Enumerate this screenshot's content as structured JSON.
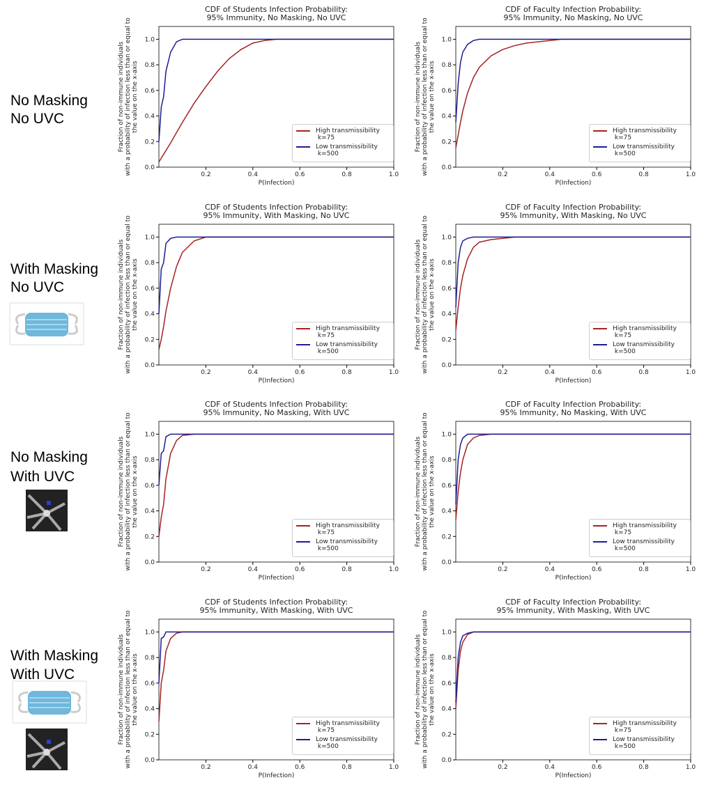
{
  "row_labels": [
    [
      "No Masking",
      "No UVC"
    ],
    [
      "With Masking",
      "No UVC"
    ],
    [
      "No Masking",
      "With UVC"
    ],
    [
      "With Masking",
      "With UVC"
    ]
  ],
  "chart_data": [
    {
      "type": "line",
      "title": [
        "CDF of Students Infection Probability:",
        "95% Immunity, No Masking, No UVC"
      ],
      "xlabel": "P(Infection)",
      "ylabel": [
        "Fraction of non-immune individuals",
        "with a probability of infection less than or equal to",
        "the value on the x-axis"
      ],
      "x": [
        0,
        0.01,
        0.02,
        0.03,
        0.05,
        0.075,
        0.1,
        0.15,
        0.2,
        0.25,
        0.3,
        0.35,
        0.4,
        0.45,
        0.5,
        0.6,
        0.8,
        1.0
      ],
      "series": [
        {
          "name": "High transmissibility\n k=75",
          "color": "#a52121",
          "values": [
            0.04,
            0.07,
            0.1,
            0.13,
            0.19,
            0.27,
            0.35,
            0.5,
            0.63,
            0.75,
            0.85,
            0.92,
            0.97,
            0.99,
            1,
            1,
            1,
            1
          ]
        },
        {
          "name": "Low transmissibility\n k=500",
          "color": "#1c1c96",
          "values": [
            0.2,
            0.47,
            0.55,
            0.75,
            0.9,
            0.98,
            1,
            1,
            1,
            1,
            1,
            1,
            1,
            1,
            1,
            1,
            1,
            1
          ]
        }
      ],
      "xlim": [
        0,
        1
      ],
      "ylim": [
        0,
        1.1
      ],
      "xticks": [
        0.2,
        0.4,
        0.6,
        0.8,
        {
          "value": 1,
          "label": "1.0"
        }
      ],
      "yticks": [
        {
          "value": 0,
          "label": "0.0"
        },
        0.2,
        0.4,
        0.6,
        0.8,
        {
          "value": 1,
          "label": "1.0"
        }
      ],
      "legend": "lower right"
    },
    {
      "type": "line",
      "title": [
        "CDF of Faculty Infection Probability:",
        "95% Immunity, No Masking, No UVC"
      ],
      "xlabel": "P(Infection)",
      "ylabel": [
        "Fraction of non-immune individuals",
        "with a probability of infection less than or equal to",
        "the value on the x-axis"
      ],
      "x": [
        0,
        0.01,
        0.02,
        0.03,
        0.05,
        0.075,
        0.1,
        0.15,
        0.2,
        0.25,
        0.3,
        0.35,
        0.4,
        0.45,
        0.5,
        0.6,
        0.8,
        1.0
      ],
      "series": [
        {
          "name": "High transmissibility\n k=75",
          "color": "#a52121",
          "values": [
            0.15,
            0.25,
            0.35,
            0.44,
            0.58,
            0.7,
            0.78,
            0.87,
            0.92,
            0.95,
            0.97,
            0.98,
            0.99,
            1,
            1,
            1,
            1,
            1
          ]
        },
        {
          "name": "Low transmissibility\n k=500",
          "color": "#1c1c96",
          "values": [
            0.35,
            0.65,
            0.82,
            0.9,
            0.96,
            0.99,
            1,
            1,
            1,
            1,
            1,
            1,
            1,
            1,
            1,
            1,
            1,
            1
          ]
        }
      ],
      "xlim": [
        0,
        1
      ],
      "ylim": [
        0,
        1.1
      ],
      "xticks": [
        0.2,
        0.4,
        0.6,
        0.8,
        {
          "value": 1,
          "label": "1.0"
        }
      ],
      "yticks": [
        {
          "value": 0,
          "label": "0.0"
        },
        0.2,
        0.4,
        0.6,
        0.8,
        {
          "value": 1,
          "label": "1.0"
        }
      ],
      "legend": "lower right"
    },
    {
      "type": "line",
      "title": [
        "CDF of Students Infection Probability:",
        "95% Immunity, With Masking, No UVC"
      ],
      "xlabel": "P(Infection)",
      "ylabel": [
        "Fraction of non-immune individuals",
        "with a probability of infection less than or equal to",
        "the value on the x-axis"
      ],
      "x": [
        0,
        0.01,
        0.02,
        0.03,
        0.05,
        0.075,
        0.1,
        0.15,
        0.2,
        0.25,
        0.3,
        0.35,
        0.4,
        0.45,
        0.5,
        0.6,
        0.8,
        1.0
      ],
      "series": [
        {
          "name": "High transmissibility\n k=75",
          "color": "#a52121",
          "values": [
            0.12,
            0.2,
            0.3,
            0.42,
            0.6,
            0.77,
            0.88,
            0.97,
            1,
            1,
            1,
            1,
            1,
            1,
            1,
            1,
            1,
            1
          ]
        },
        {
          "name": "Low transmissibility\n k=500",
          "color": "#1c1c96",
          "values": [
            0.4,
            0.75,
            0.8,
            0.95,
            0.99,
            1,
            1,
            1,
            1,
            1,
            1,
            1,
            1,
            1,
            1,
            1,
            1,
            1
          ]
        }
      ],
      "xlim": [
        0,
        1
      ],
      "ylim": [
        0,
        1.1
      ],
      "xticks": [
        0.2,
        0.4,
        0.6,
        0.8,
        {
          "value": 1,
          "label": "1.0"
        }
      ],
      "yticks": [
        {
          "value": 0,
          "label": "0.0"
        },
        0.2,
        0.4,
        0.6,
        0.8,
        {
          "value": 1,
          "label": "1.0"
        }
      ],
      "legend": "lower right"
    },
    {
      "type": "line",
      "title": [
        "CDF of Faculty Infection Probability:",
        "95% Immunity, With Masking, No UVC"
      ],
      "xlabel": "P(Infection)",
      "ylabel": [
        "Fraction of non-immune individuals",
        "with a probability of infection less than or equal to",
        "the value on the x-axis"
      ],
      "x": [
        0,
        0.01,
        0.02,
        0.03,
        0.05,
        0.075,
        0.1,
        0.15,
        0.2,
        0.25,
        0.3,
        0.35,
        0.4,
        0.45,
        0.5,
        0.6,
        0.8,
        1.0
      ],
      "series": [
        {
          "name": "High transmissibility\n k=75",
          "color": "#a52121",
          "values": [
            0.27,
            0.45,
            0.6,
            0.7,
            0.83,
            0.92,
            0.96,
            0.98,
            0.99,
            1,
            1,
            1,
            1,
            1,
            1,
            1,
            1,
            1
          ]
        },
        {
          "name": "Low transmissibility\n k=500",
          "color": "#1c1c96",
          "values": [
            0.45,
            0.8,
            0.92,
            0.97,
            0.99,
            1,
            1,
            1,
            1,
            1,
            1,
            1,
            1,
            1,
            1,
            1,
            1,
            1
          ]
        }
      ],
      "xlim": [
        0,
        1
      ],
      "ylim": [
        0,
        1.1
      ],
      "xticks": [
        0.2,
        0.4,
        0.6,
        0.8,
        {
          "value": 1,
          "label": "1.0"
        }
      ],
      "yticks": [
        {
          "value": 0,
          "label": "0.0"
        },
        0.2,
        0.4,
        0.6,
        0.8,
        {
          "value": 1,
          "label": "1.0"
        }
      ],
      "legend": "lower right"
    },
    {
      "type": "line",
      "title": [
        "CDF of Students Infection Probability:",
        "95% Immunity, No Masking, With UVC"
      ],
      "xlabel": "P(Infection)",
      "ylabel": [
        "Fraction of non-immune individuals",
        "with a probability of infection less than or equal to",
        "the value on the x-axis"
      ],
      "x": [
        0,
        0.01,
        0.02,
        0.03,
        0.05,
        0.075,
        0.1,
        0.15,
        0.2,
        0.25,
        0.3,
        0.35,
        0.4,
        0.45,
        0.5,
        0.6,
        0.8,
        1.0
      ],
      "series": [
        {
          "name": "High transmissibility\n k=75",
          "color": "#a52121",
          "values": [
            0.2,
            0.35,
            0.45,
            0.65,
            0.85,
            0.95,
            0.99,
            1,
            1,
            1,
            1,
            1,
            1,
            1,
            1,
            1,
            1,
            1
          ]
        },
        {
          "name": "Low transmissibility\n k=500",
          "color": "#1c1c96",
          "values": [
            0.6,
            0.85,
            0.87,
            0.98,
            1,
            1,
            1,
            1,
            1,
            1,
            1,
            1,
            1,
            1,
            1,
            1,
            1,
            1
          ]
        }
      ],
      "xlim": [
        0,
        1
      ],
      "ylim": [
        0,
        1.1
      ],
      "xticks": [
        0.2,
        0.4,
        0.6,
        0.8,
        {
          "value": 1,
          "label": "1.0"
        }
      ],
      "yticks": [
        {
          "value": 0,
          "label": "0.0"
        },
        0.2,
        0.4,
        0.6,
        0.8,
        {
          "value": 1,
          "label": "1.0"
        }
      ],
      "legend": "lower right"
    },
    {
      "type": "line",
      "title": [
        "CDF of Faculty Infection Probability:",
        "95% Immunity, No Masking, With UVC"
      ],
      "xlabel": "P(Infection)",
      "ylabel": [
        "Fraction of non-immune individuals",
        "with a probability of infection less than or equal to",
        "the value on the x-axis"
      ],
      "x": [
        0,
        0.01,
        0.02,
        0.03,
        0.05,
        0.075,
        0.1,
        0.15,
        0.2,
        0.25,
        0.3,
        0.35,
        0.4,
        0.45,
        0.5,
        0.6,
        0.8,
        1.0
      ],
      "series": [
        {
          "name": "High transmissibility\n k=75",
          "color": "#a52121",
          "values": [
            0.33,
            0.55,
            0.7,
            0.8,
            0.92,
            0.97,
            0.99,
            1,
            1,
            1,
            1,
            1,
            1,
            1,
            1,
            1,
            1,
            1
          ]
        },
        {
          "name": "Low transmissibility\n k=500",
          "color": "#1c1c96",
          "values": [
            0.45,
            0.8,
            0.92,
            0.97,
            1,
            1,
            1,
            1,
            1,
            1,
            1,
            1,
            1,
            1,
            1,
            1,
            1,
            1
          ]
        }
      ],
      "xlim": [
        0,
        1
      ],
      "ylim": [
        0,
        1.1
      ],
      "xticks": [
        0.2,
        0.4,
        0.6,
        0.8,
        {
          "value": 1,
          "label": "1.0"
        }
      ],
      "yticks": [
        {
          "value": 0,
          "label": "0.0"
        },
        0.2,
        0.4,
        0.6,
        0.8,
        {
          "value": 1,
          "label": "1.0"
        }
      ],
      "legend": "lower right"
    },
    {
      "type": "line",
      "title": [
        "CDF of Students Infection Probability:",
        "95% Immunity, With Masking, With UVC"
      ],
      "xlabel": "P(Infection)",
      "ylabel": [
        "Fraction of non-immune individuals",
        "with a probability of infection less than or equal to",
        "the value on the x-axis"
      ],
      "x": [
        0,
        0.01,
        0.02,
        0.03,
        0.05,
        0.075,
        0.1,
        0.15,
        0.2,
        0.25,
        0.3,
        0.35,
        0.4,
        0.45,
        0.5,
        0.6,
        0.8,
        1.0
      ],
      "series": [
        {
          "name": "High transmissibility\n k=75",
          "color": "#a52121",
          "values": [
            0.3,
            0.6,
            0.7,
            0.85,
            0.95,
            0.99,
            1,
            1,
            1,
            1,
            1,
            1,
            1,
            1,
            1,
            1,
            1,
            1
          ]
        },
        {
          "name": "Low transmissibility\n k=500",
          "color": "#1c1c96",
          "values": [
            0.6,
            0.95,
            0.96,
            1,
            1,
            1,
            1,
            1,
            1,
            1,
            1,
            1,
            1,
            1,
            1,
            1,
            1,
            1
          ]
        }
      ],
      "xlim": [
        0,
        1
      ],
      "ylim": [
        0,
        1.1
      ],
      "xticks": [
        0.2,
        0.4,
        0.6,
        0.8,
        {
          "value": 1,
          "label": "1.0"
        }
      ],
      "yticks": [
        {
          "value": 0,
          "label": "0.0"
        },
        0.2,
        0.4,
        0.6,
        0.8,
        {
          "value": 1,
          "label": "1.0"
        }
      ],
      "legend": "lower right"
    },
    {
      "type": "line",
      "title": [
        "CDF of Faculty Infection Probability:",
        "95% Immunity, With Masking, With UVC"
      ],
      "xlabel": "P(Infection)",
      "ylabel": [
        "Fraction of non-immune individuals",
        "with a probability of infection less than or equal to",
        "the value on the x-axis"
      ],
      "x": [
        0,
        0.01,
        0.02,
        0.03,
        0.05,
        0.075,
        0.1,
        0.15,
        0.2,
        0.25,
        0.3,
        0.35,
        0.4,
        0.45,
        0.5,
        0.6,
        0.8,
        1.0
      ],
      "series": [
        {
          "name": "High transmissibility\n k=75",
          "color": "#a52121",
          "values": [
            0.4,
            0.7,
            0.85,
            0.92,
            0.98,
            1,
            1,
            1,
            1,
            1,
            1,
            1,
            1,
            1,
            1,
            1,
            1,
            1
          ]
        },
        {
          "name": "Low transmissibility\n k=500",
          "color": "#1c1c96",
          "values": [
            0.45,
            0.8,
            0.92,
            0.97,
            0.99,
            1,
            1,
            1,
            1,
            1,
            1,
            1,
            1,
            1,
            1,
            1,
            1,
            1
          ]
        }
      ],
      "xlim": [
        0,
        1
      ],
      "ylim": [
        0,
        1.1
      ],
      "xticks": [
        0.2,
        0.4,
        0.6,
        0.8,
        {
          "value": 1,
          "label": "1.0"
        }
      ],
      "yticks": [
        {
          "value": 0,
          "label": "0.0"
        },
        0.2,
        0.4,
        0.6,
        0.8,
        {
          "value": 1,
          "label": "1.0"
        }
      ],
      "legend": "lower right"
    }
  ]
}
